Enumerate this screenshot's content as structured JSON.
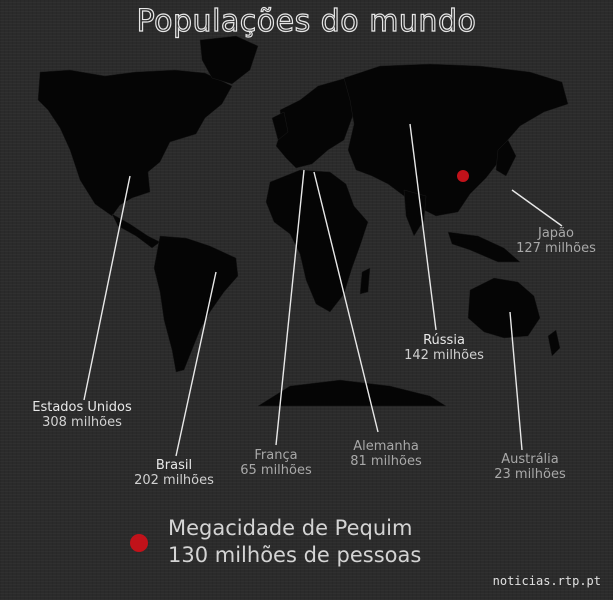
{
  "title": "Populações do mundo",
  "countries": [
    {
      "id": "usa",
      "name": "Estados Unidos",
      "population": "308 milhões"
    },
    {
      "id": "brazil",
      "name": "Brasil",
      "population": "202 milhões"
    },
    {
      "id": "france",
      "name": "França",
      "population": "65 milhões"
    },
    {
      "id": "germany",
      "name": "Alemanha",
      "population": "81 milhões"
    },
    {
      "id": "russia",
      "name": "Rússia",
      "population": "142 milhões"
    },
    {
      "id": "japan",
      "name": "Japão",
      "population": "127 milhões"
    },
    {
      "id": "australia",
      "name": "Austrália",
      "population": "23 milhões"
    }
  ],
  "legend": {
    "label": "Megacidade de Pequim",
    "value": "130 milhões de pessoas",
    "color": "#c1121a"
  },
  "colors": {
    "background": "#2b2b2b",
    "land": "#050505",
    "text": "#e8e8e8",
    "marker": "#c1121a"
  },
  "source": "noticias.rtp.pt"
}
